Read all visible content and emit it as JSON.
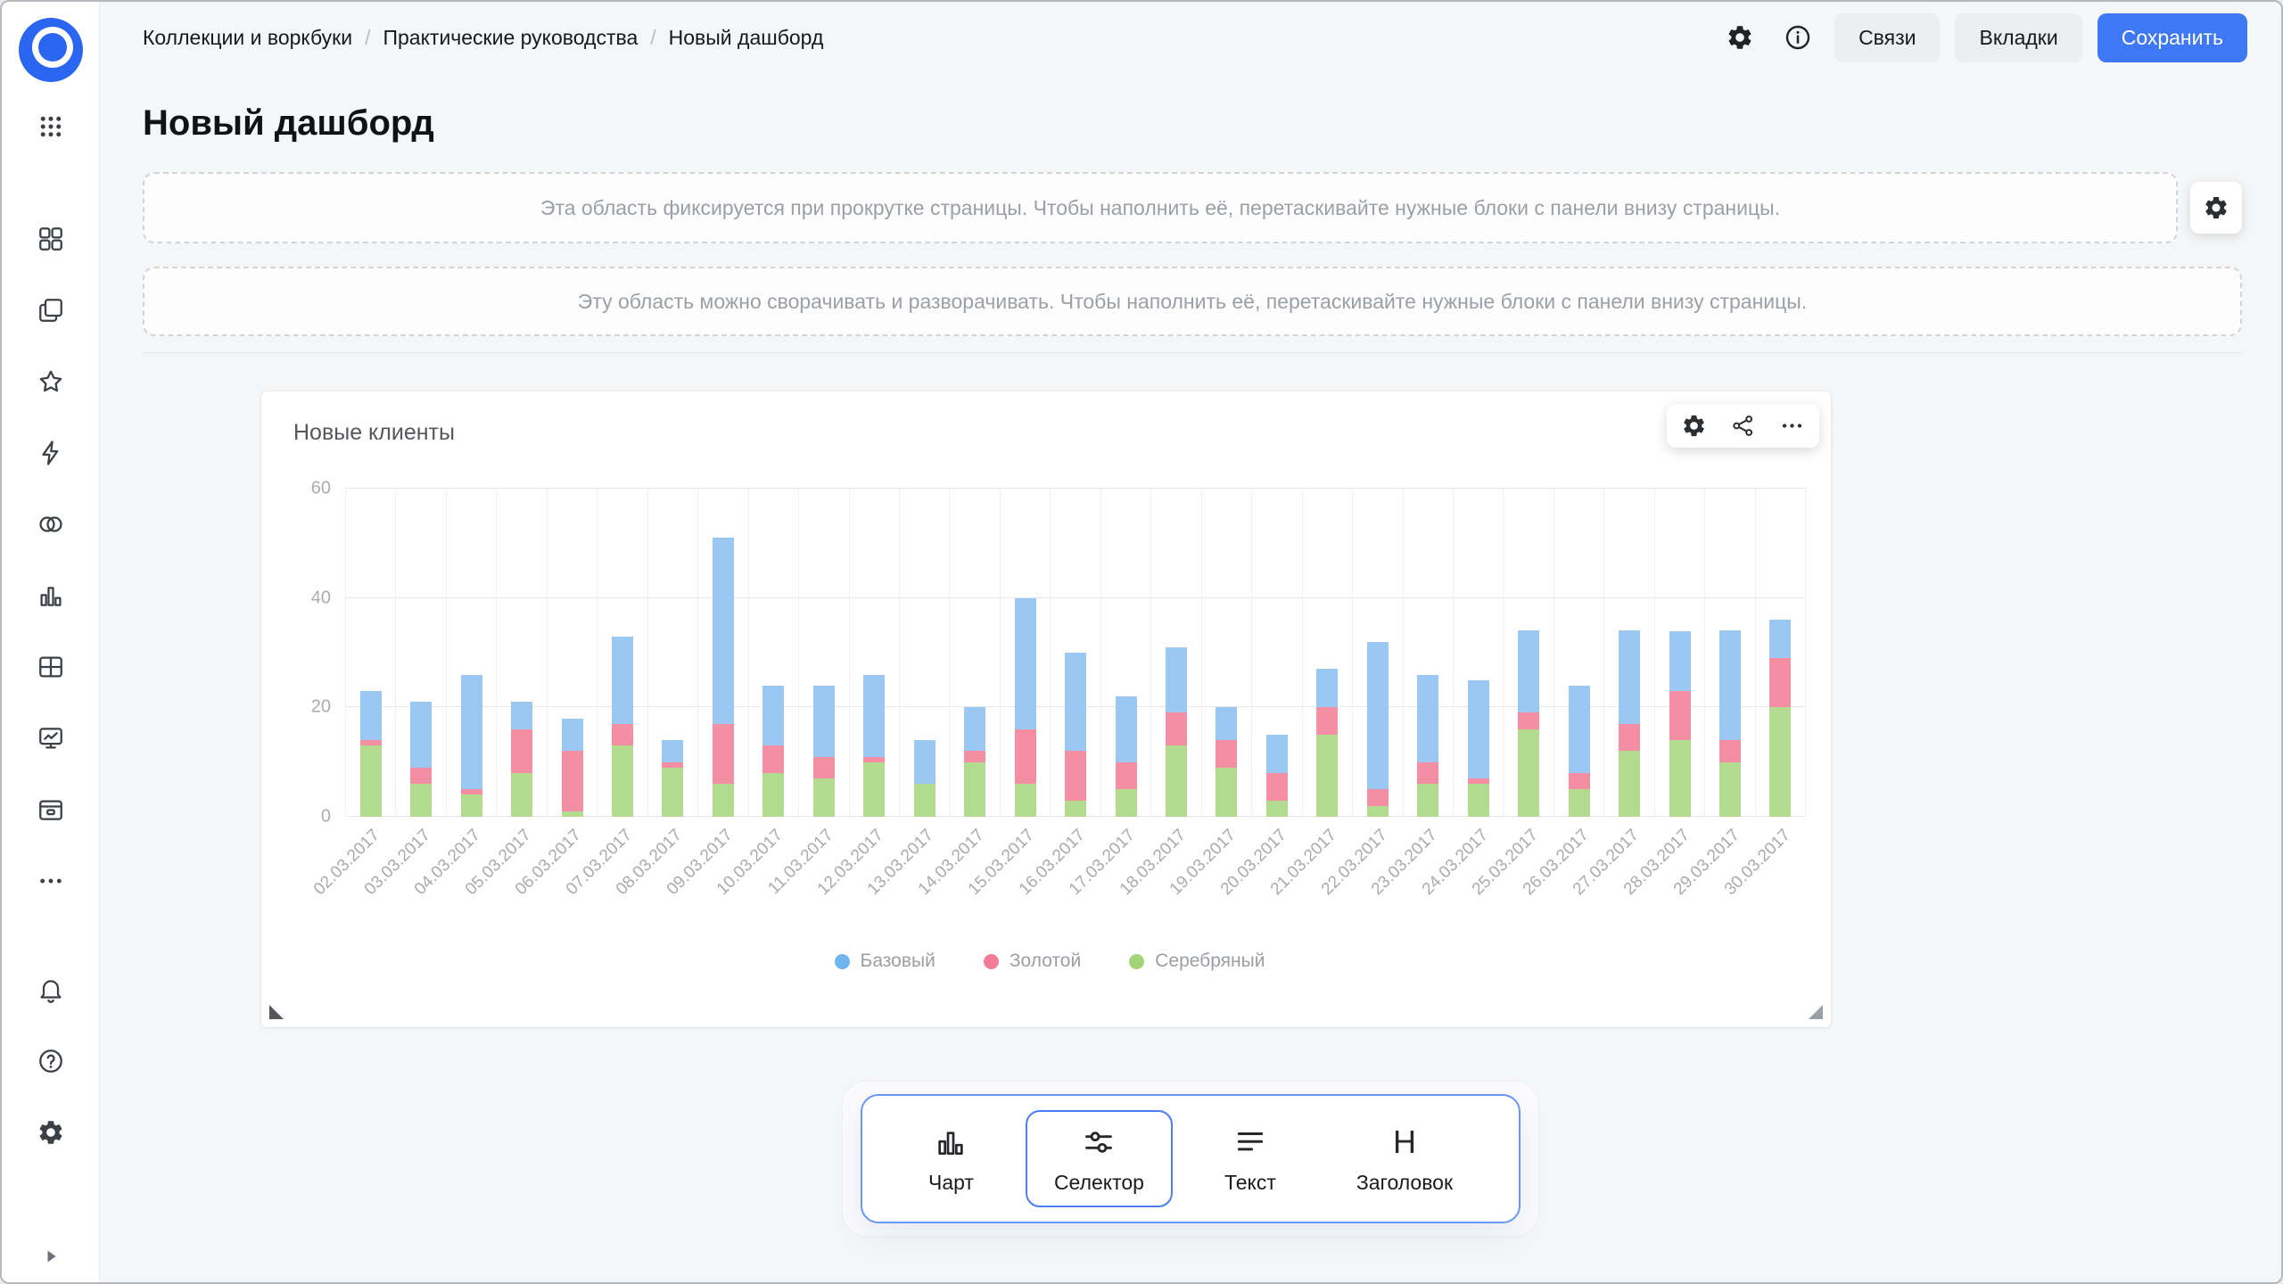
{
  "colors": {
    "accent": "#3f78f4",
    "logo": "#2b66f0"
  },
  "header": {
    "breadcrumb": [
      "Коллекции и воркбуки",
      "Практические руководства",
      "Новый дашборд"
    ],
    "separator": "/",
    "buttons": {
      "relations": "Связи",
      "tabs": "Вкладки",
      "save": "Сохранить"
    }
  },
  "page": {
    "title": "Новый дашборд"
  },
  "areas": {
    "fixed_hint": "Эта область фиксируется при прокрутке страницы. Чтобы наполнить её, перетаскивайте нужные блоки с панели внизу страницы.",
    "collapsible_hint": "Эту область можно сворачивать и разворачивать. Чтобы наполнить её, перетаскивайте нужные блоки с панели внизу страницы."
  },
  "widget": {
    "title": "Новые клиенты"
  },
  "chart_data": {
    "type": "bar",
    "stacked": true,
    "title": "Новые клиенты",
    "categories": [
      "02.03.2017",
      "03.03.2017",
      "04.03.2017",
      "05.03.2017",
      "06.03.2017",
      "07.03.2017",
      "08.03.2017",
      "09.03.2017",
      "10.03.2017",
      "11.03.2017",
      "12.03.2017",
      "13.03.2017",
      "14.03.2017",
      "15.03.2017",
      "16.03.2017",
      "17.03.2017",
      "18.03.2017",
      "19.03.2017",
      "20.03.2017",
      "21.03.2017",
      "22.03.2017",
      "23.03.2017",
      "24.03.2017",
      "25.03.2017",
      "26.03.2017",
      "27.03.2017",
      "28.03.2017",
      "29.03.2017",
      "30.03.2017"
    ],
    "series": [
      {
        "name": "Базовый",
        "key": "base",
        "color": "#9AC8F2",
        "legend_color": "#70B6EE",
        "values": [
          9,
          12,
          21,
          5,
          6,
          16,
          4,
          34,
          11,
          13,
          15,
          8,
          8,
          24,
          18,
          12,
          12,
          6,
          7,
          7,
          27,
          16,
          18,
          15,
          16,
          17,
          11,
          20,
          7
        ]
      },
      {
        "name": "Золотой",
        "key": "gold",
        "color": "#F48FA3",
        "legend_color": "#F27B95",
        "values": [
          1,
          3,
          1,
          8,
          11,
          4,
          1,
          11,
          5,
          4,
          1,
          0,
          2,
          10,
          9,
          5,
          6,
          5,
          5,
          5,
          3,
          4,
          1,
          3,
          3,
          5,
          9,
          4,
          9
        ]
      },
      {
        "name": "Серебряный",
        "key": "silver",
        "color": "#B3DB8F",
        "legend_color": "#A3D377",
        "values": [
          13,
          6,
          4,
          8,
          1,
          13,
          9,
          6,
          8,
          7,
          10,
          6,
          10,
          6,
          3,
          5,
          13,
          9,
          3,
          15,
          2,
          6,
          6,
          16,
          5,
          12,
          14,
          10,
          20
        ]
      }
    ],
    "stack_order_bottom_to_top": [
      "Серебряный",
      "Золотой",
      "Базовый"
    ],
    "ylim": [
      0,
      60
    ],
    "yticks": [
      0,
      20,
      40,
      60
    ],
    "grid": true,
    "legend_position": "bottom"
  },
  "palette": {
    "items": [
      {
        "label": "Чарт",
        "icon": "chart-icon",
        "selected": false
      },
      {
        "label": "Селектор",
        "icon": "sliders-icon",
        "selected": true
      },
      {
        "label": "Текст",
        "icon": "text-lines-icon",
        "selected": false
      },
      {
        "label": "Заголовок",
        "icon": "heading-icon",
        "glyph": "H",
        "selected": false
      }
    ]
  },
  "sidebar": {
    "icons": [
      "datalens-logo",
      "apps-grid",
      "widgets",
      "workbooks",
      "favorites",
      "quick-actions",
      "connections",
      "charts",
      "datasets",
      "dashboards",
      "storage",
      "more",
      "notifications",
      "help",
      "settings",
      "expand-sidebar"
    ]
  }
}
